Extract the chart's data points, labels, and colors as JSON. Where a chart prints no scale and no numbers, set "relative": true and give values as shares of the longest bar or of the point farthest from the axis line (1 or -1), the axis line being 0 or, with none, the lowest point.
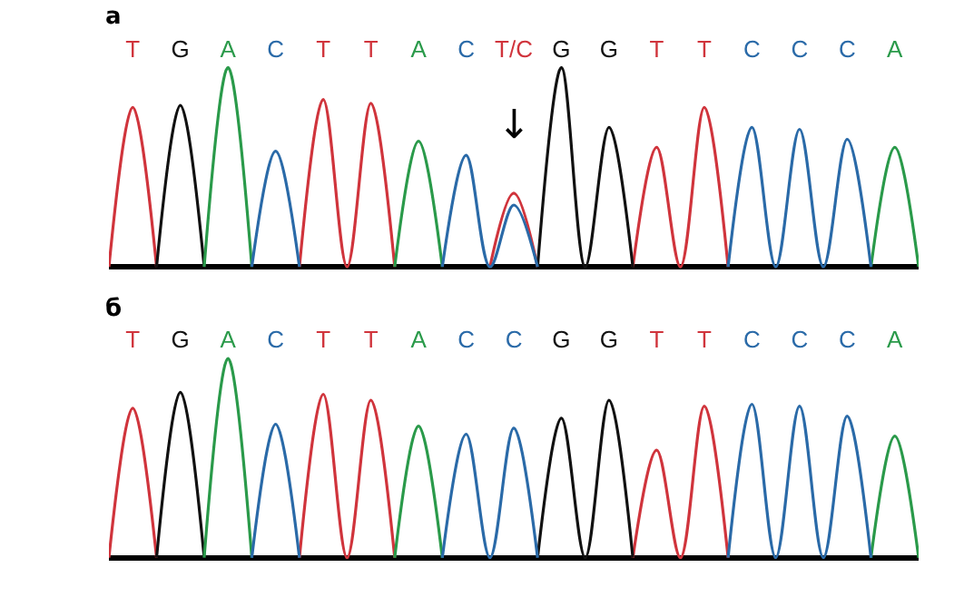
{
  "chart_data": [
    {
      "type": "line",
      "title": "а",
      "relative": true,
      "marker": "none",
      "line_style": "solid",
      "categories": [
        null,
        "T",
        null,
        "G",
        null,
        "A",
        null,
        "C",
        null,
        "T",
        null,
        "T",
        null,
        "A",
        null,
        "C",
        null,
        "T/C",
        null,
        "G",
        null,
        "G",
        null,
        "T",
        null,
        "T",
        null,
        "C",
        null,
        "C",
        null,
        "C",
        null,
        "A",
        null
      ],
      "series": [
        {
          "color": "#d0343c",
          "values": [
            0,
            0.8,
            0,
            null,
            null,
            null,
            null,
            null,
            0,
            0.84,
            0,
            0.82,
            0,
            null,
            null,
            null,
            0,
            0.37,
            0,
            null,
            null,
            null,
            0,
            0.6,
            0,
            0.8,
            0,
            null,
            null,
            null,
            null,
            null,
            null,
            null,
            null
          ]
        },
        {
          "color": "#111111",
          "values": [
            null,
            null,
            0,
            0.81,
            0,
            null,
            null,
            null,
            null,
            null,
            null,
            null,
            null,
            null,
            null,
            null,
            null,
            null,
            0,
            1,
            0,
            0.7,
            0,
            null,
            null,
            null,
            null,
            null,
            null,
            null,
            null,
            null,
            null,
            null,
            null
          ]
        },
        {
          "color": "#2a9a4a",
          "values": [
            null,
            null,
            null,
            null,
            0,
            1,
            0,
            null,
            null,
            null,
            null,
            null,
            0,
            0.63,
            0,
            null,
            null,
            null,
            null,
            null,
            null,
            null,
            null,
            null,
            null,
            null,
            null,
            null,
            null,
            null,
            null,
            null,
            0,
            0.6,
            0
          ]
        },
        {
          "color": "#2a6aa8",
          "values": [
            null,
            null,
            null,
            null,
            null,
            null,
            0,
            0.58,
            0,
            null,
            null,
            null,
            null,
            null,
            0,
            0.56,
            0,
            0.31,
            0,
            null,
            null,
            null,
            null,
            null,
            null,
            null,
            0,
            0.7,
            0,
            0.69,
            0,
            0.64,
            0,
            null,
            null
          ]
        }
      ],
      "annotations": [
        "↓"
      ]
    },
    {
      "type": "line",
      "title": "б",
      "relative": true,
      "marker": "none",
      "line_style": "solid",
      "categories": [
        null,
        "T",
        null,
        "G",
        null,
        "A",
        null,
        "C",
        null,
        "T",
        null,
        "T",
        null,
        "A",
        null,
        "C",
        null,
        "C",
        null,
        "G",
        null,
        "G",
        null,
        "T",
        null,
        "T",
        null,
        "C",
        null,
        "C",
        null,
        "C",
        null,
        "A",
        null
      ],
      "series": [
        {
          "color": "#d0343c",
          "values": [
            0,
            0.75,
            0,
            null,
            null,
            null,
            null,
            null,
            0,
            0.82,
            0,
            0.79,
            0,
            null,
            null,
            null,
            null,
            null,
            null,
            null,
            null,
            null,
            0,
            0.54,
            0,
            0.76,
            0,
            null,
            null,
            null,
            null,
            null,
            null,
            null,
            null
          ]
        },
        {
          "color": "#111111",
          "values": [
            null,
            null,
            0,
            0.83,
            0,
            null,
            null,
            null,
            null,
            null,
            null,
            null,
            null,
            null,
            null,
            null,
            null,
            null,
            0,
            0.7,
            0,
            0.79,
            0,
            null,
            null,
            null,
            null,
            null,
            null,
            null,
            null,
            null,
            null,
            null,
            null
          ]
        },
        {
          "color": "#2a9a4a",
          "values": [
            null,
            null,
            null,
            null,
            0,
            1,
            0,
            null,
            null,
            null,
            null,
            null,
            0,
            0.66,
            0,
            null,
            null,
            null,
            null,
            null,
            null,
            null,
            null,
            null,
            null,
            null,
            null,
            null,
            null,
            null,
            null,
            null,
            0,
            0.61,
            0
          ]
        },
        {
          "color": "#2a6aa8",
          "values": [
            null,
            null,
            null,
            null,
            null,
            null,
            0,
            0.67,
            0,
            null,
            null,
            null,
            null,
            null,
            0,
            0.62,
            0,
            0.65,
            0,
            null,
            null,
            null,
            null,
            null,
            null,
            null,
            0,
            0.77,
            0,
            0.76,
            0,
            0.71,
            0,
            null,
            null
          ]
        }
      ]
    }
  ]
}
